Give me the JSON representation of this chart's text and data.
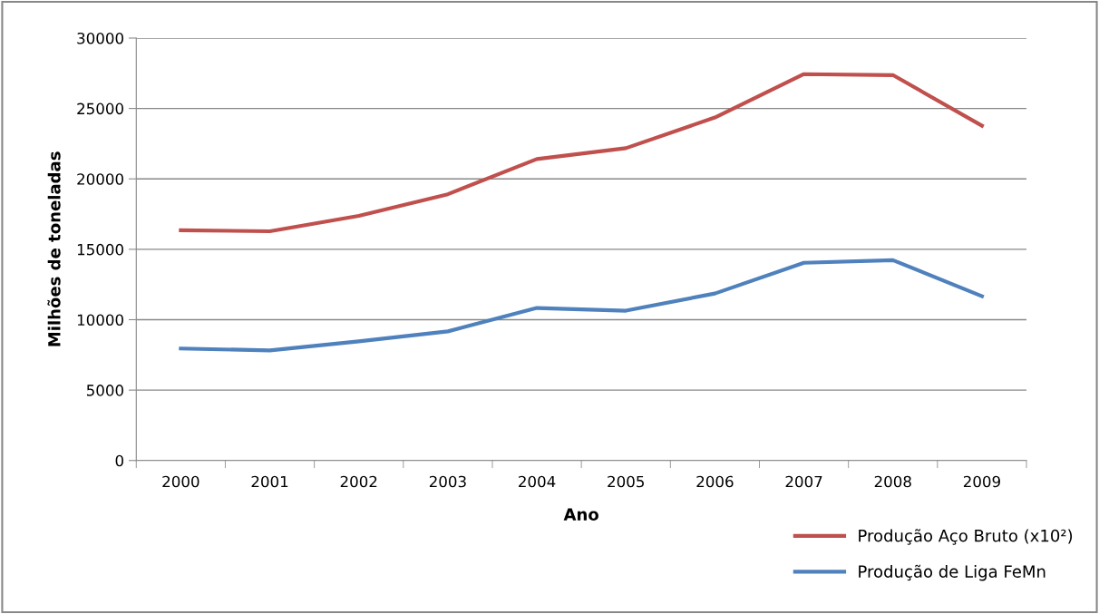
{
  "chart_data": {
    "type": "line",
    "xlabel": "Ano",
    "ylabel": "Milhões de toneladas",
    "categories": [
      "2000",
      "2001",
      "2002",
      "2003",
      "2004",
      "2005",
      "2006",
      "2007",
      "2008",
      "2009"
    ],
    "series": [
      {
        "name": "Produção Aço Bruto (x10²)",
        "color": "#c0504d",
        "values": [
          16350,
          16280,
          17370,
          18910,
          21410,
          22180,
          24360,
          27440,
          27370,
          23780
        ]
      },
      {
        "name": "Produção de Liga FeMn",
        "color": "#4f81bd",
        "values": [
          7950,
          7820,
          8460,
          9170,
          10830,
          10640,
          11860,
          14040,
          14230,
          11670
        ]
      }
    ],
    "ylim": [
      0,
      30000
    ],
    "yticks": [
      0,
      5000,
      10000,
      15000,
      20000,
      25000,
      30000
    ],
    "grid": "y",
    "legend": "bottom right",
    "marker": "none",
    "line_style": "solid"
  }
}
